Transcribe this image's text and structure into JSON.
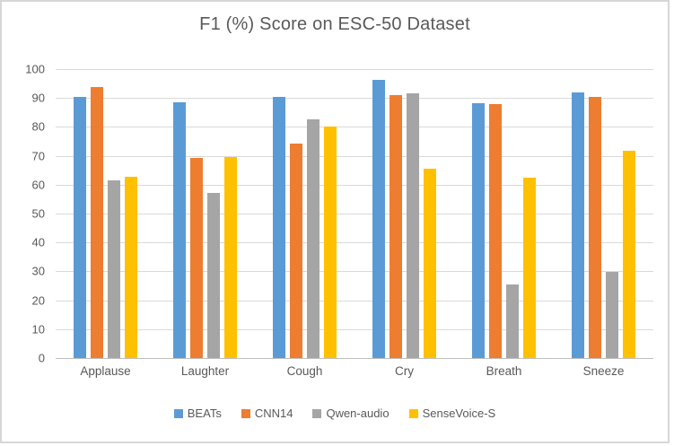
{
  "chart_data": {
    "type": "bar",
    "title": "F1 (%) Score on ESC-50 Dataset",
    "categories": [
      "Applause",
      "Laughter",
      "Cough",
      "Cry",
      "Breath",
      "Sneeze"
    ],
    "series": [
      {
        "name": "BEATs",
        "color": "#5B9BD5",
        "values": [
          90.3,
          88.4,
          90.3,
          96.2,
          88.1,
          91.9
        ]
      },
      {
        "name": "CNN14",
        "color": "#ED7D31",
        "values": [
          93.9,
          69.4,
          74.2,
          91.0,
          87.8,
          90.3
        ]
      },
      {
        "name": "Qwen-audio",
        "color": "#A5A5A5",
        "values": [
          61.5,
          57.1,
          82.5,
          91.6,
          25.4,
          29.8
        ]
      },
      {
        "name": "SenseVoice-S",
        "color": "#FFC000",
        "values": [
          62.8,
          69.6,
          80.2,
          65.4,
          62.4,
          71.8
        ]
      }
    ],
    "xlabel": "",
    "ylabel": "",
    "ylim": [
      0,
      100
    ],
    "ytick_step": 10,
    "yticks": [
      0,
      10,
      20,
      30,
      40,
      50,
      60,
      70,
      80,
      90,
      100
    ],
    "grid": true,
    "legend_position": "bottom"
  },
  "colors": {
    "series_blue": "#5B9BD5",
    "series_orange": "#ED7D31",
    "series_gray": "#A5A5A5",
    "series_yellow": "#FFC000",
    "gridline": "#D9D9D9",
    "axis_line": "#BFBFBF",
    "text": "#595959",
    "chart_border": "#D7D7D7",
    "background": "#FFFFFF"
  }
}
